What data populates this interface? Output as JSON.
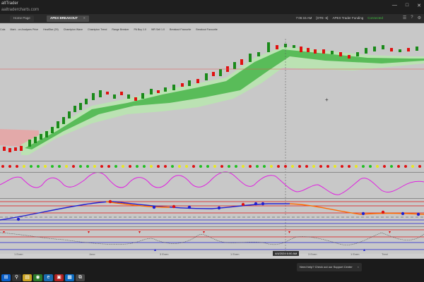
{
  "window": {
    "app_title": "altTrader",
    "url_text": "aaltradercharts.com",
    "controls": [
      "—",
      "□",
      "✕"
    ]
  },
  "tabs": [
    {
      "label": "Home Page",
      "active": false
    },
    {
      "label": "APEX BREAKOUT",
      "active": true
    }
  ],
  "header_right": {
    "time": "7:06:15 AM",
    "mode": "[OTE -6]",
    "alert": "APEX Trader Funding",
    "status": "Connected"
  },
  "indicator_strip": [
    "Cola",
    "Mark - on Analyses Price",
    "HeatStar (29)",
    "Chamipion Wave",
    "Chamipion Trend",
    "Range Breaker",
    "PA Buy 1.0",
    "WR Sell 1.0",
    "Breakout Favourite",
    "Breakout Favourite"
  ],
  "time_axis": [
    "1 Even",
    "Jovo",
    "3 Even",
    "1 Even",
    "3 Even",
    "1 Even",
    "Trexi"
  ],
  "crosshair_time": "4/4/2024 6:00 AM",
  "toast": {
    "text": "Need help? Check out our Support Center"
  },
  "taskbar": {
    "icons": [
      "start-icon",
      "search-icon",
      "file-explorer-icon",
      "chrome-icon",
      "edge-icon",
      "app-icon",
      "store-icon",
      "trading-app-icon"
    ]
  },
  "colors": {
    "background": "#c8c8c8",
    "bull_candle": "#1aa81a",
    "bear_candle": "#e01010",
    "band_green": "#3fbf3f",
    "band_red": "#e07070",
    "oscillator_magenta": "#e020e0",
    "trend_orange": "#ff6a00",
    "trend_blue": "#2020d0"
  }
}
